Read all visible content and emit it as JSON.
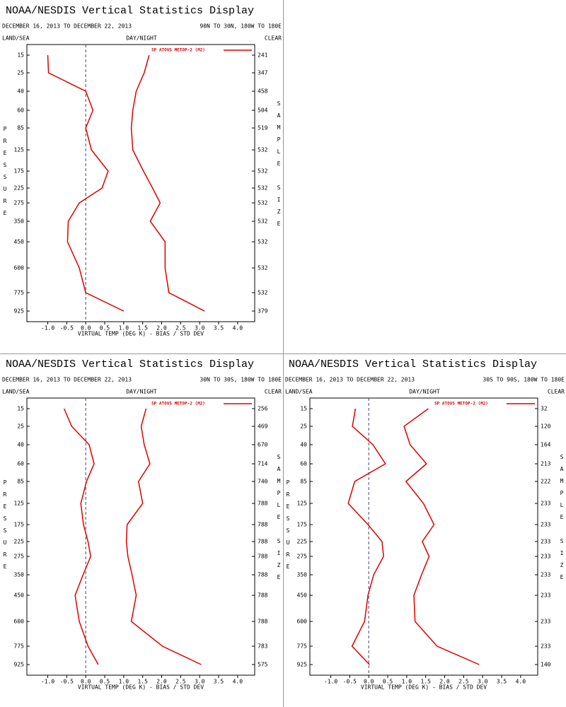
{
  "chart_data": [
    {
      "type": "line",
      "title": "NOAA/NESDIS Vertical Statistics Display",
      "date_range": "DECEMBER 16, 2013 TO DECEMBER 22, 2013",
      "region": "90N TO 30N, 180W TO 180E",
      "land_sea": "LAND/SEA",
      "day_night": "DAY/NIGHT",
      "clear": "CLEAR",
      "ylabel": "PRESSURE",
      "y2label": "SAMPLE SIZE",
      "xlabel": "VIRTUAL TEMP (DEG K) - BIAS / STD DEV",
      "categories": [
        "15",
        "25",
        "40",
        "60",
        "85",
        "125",
        "175",
        "225",
        "275",
        "350",
        "450",
        "600",
        "775",
        "925"
      ],
      "sample_size": [
        "241",
        "347",
        "458",
        "504",
        "519",
        "532",
        "532",
        "532",
        "532",
        "532",
        "532",
        "532",
        "532",
        "379"
      ],
      "series": [
        {
          "name": "SP ATOVS METOP-2 (M2)",
          "color": "#dd0000",
          "values": [
            -1.0,
            -0.98,
            0.0,
            0.19,
            0.0,
            0.15,
            0.59,
            0.43,
            -0.17,
            -0.46,
            -0.48,
            -0.17,
            0.0,
            1.0
          ],
          "std_dev": [
            1.67,
            1.54,
            1.33,
            1.24,
            1.2,
            1.24,
            1.52,
            1.76,
            1.96,
            1.7,
            2.09,
            2.09,
            2.19,
            3.13
          ]
        }
      ],
      "xlim": [
        -1.55,
        4.45
      ],
      "xticks": [
        {
          "value": -1,
          "label": "-1.0"
        },
        -0.5,
        {
          "value": 0,
          "label": "0.0"
        },
        0.5,
        {
          "value": 1,
          "label": "1.0"
        },
        1.5,
        {
          "value": 2,
          "label": "2.0"
        },
        2.5,
        {
          "value": 3,
          "label": "3.0"
        },
        3.5,
        {
          "value": 4,
          "label": "4.0"
        }
      ]
    },
    {
      "type": "line",
      "title": "NOAA/NESDIS Vertical Statistics Display",
      "date_range": "DECEMBER 16, 2013 TO DECEMBER 22, 2013",
      "region": "30N TO 30S, 180W TO 180E",
      "land_sea": "LAND/SEA",
      "day_night": "DAY/NIGHT",
      "clear": "CLEAR",
      "ylabel": "PRESSURE",
      "y2label": "SAMPLE SIZE",
      "xlabel": "VIRTUAL TEMP (DEG K) - BIAS / STD DEV",
      "categories": [
        "15",
        "25",
        "40",
        "60",
        "85",
        "125",
        "175",
        "225",
        "275",
        "350",
        "450",
        "600",
        "775",
        "925"
      ],
      "sample_size": [
        "256",
        "469",
        "670",
        "714",
        "740",
        "788",
        "788",
        "788",
        "788",
        "788",
        "788",
        "788",
        "783",
        "575"
      ],
      "series": [
        {
          "name": "SP ATOVS METOP-2 (M2)",
          "color": "#dd0000",
          "values": [
            -0.57,
            -0.37,
            0.09,
            0.22,
            0.02,
            -0.13,
            -0.06,
            0.06,
            0.13,
            -0.07,
            -0.28,
            -0.17,
            0.06,
            0.33
          ],
          "std_dev": [
            1.59,
            1.46,
            1.54,
            1.69,
            1.39,
            1.5,
            1.09,
            1.07,
            1.11,
            1.22,
            1.33,
            1.2,
            2.02,
            3.04
          ]
        }
      ],
      "xlim": [
        -1.55,
        4.45
      ],
      "xticks": [
        {
          "value": -1,
          "label": "-1.0"
        },
        -0.5,
        {
          "value": 0,
          "label": "0.0"
        },
        0.5,
        {
          "value": 1,
          "label": "1.0"
        },
        1.5,
        {
          "value": 2,
          "label": "2.0"
        },
        2.5,
        {
          "value": 3,
          "label": "3.0"
        },
        3.5,
        {
          "value": 4,
          "label": "4.0"
        }
      ]
    },
    {
      "type": "line",
      "title": "NOAA/NESDIS Vertical Statistics Display",
      "date_range": "DECEMBER 16, 2013 TO DECEMBER 22, 2013",
      "region": "30S TO 90S, 180W TO 180E",
      "land_sea": "LAND/SEA",
      "day_night": "DAY/NIGHT",
      "clear": "CLEAR",
      "ylabel": "PRESSURE",
      "y2label": "SAMPLE SIZE",
      "xlabel": "VIRTUAL TEMP (DEG K) - BIAS / STD DEV",
      "categories": [
        "15",
        "25",
        "40",
        "60",
        "85",
        "125",
        "175",
        "225",
        "275",
        "350",
        "450",
        "600",
        "775",
        "925"
      ],
      "sample_size": [
        "32",
        "120",
        "164",
        "213",
        "222",
        "233",
        "233",
        "233",
        "233",
        "233",
        "233",
        "233",
        "233",
        "140"
      ],
      "series": [
        {
          "name": "SP ATOVS METOP-2 (M2)",
          "color": "#dd0000",
          "values": [
            -0.35,
            -0.43,
            0.11,
            0.44,
            -0.37,
            -0.54,
            -0.02,
            0.35,
            0.39,
            0.13,
            -0.02,
            -0.11,
            -0.44,
            0.02
          ],
          "std_dev": [
            1.57,
            0.93,
            1.09,
            1.52,
            0.98,
            1.44,
            1.72,
            1.41,
            1.59,
            1.39,
            1.19,
            1.22,
            1.8,
            2.91
          ]
        }
      ],
      "xlim": [
        -1.55,
        4.45
      ],
      "xticks": [
        {
          "value": -1,
          "label": "-1.0"
        },
        -0.5,
        {
          "value": 0,
          "label": "0.0"
        },
        0.5,
        {
          "value": 1,
          "label": "1.0"
        },
        1.5,
        {
          "value": 2,
          "label": "2.0"
        },
        2.5,
        {
          "value": 3,
          "label": "3.0"
        },
        3.5,
        {
          "value": 4,
          "label": "4.0"
        }
      ]
    }
  ]
}
